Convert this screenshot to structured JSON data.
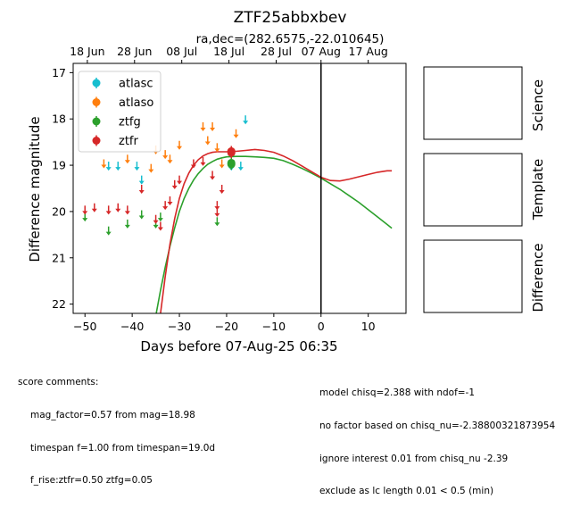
{
  "chart_data": {
    "type": "scatter",
    "title": "ZTF25abbxbev",
    "subtitle": "ra,dec=(282.6575,-22.010645)",
    "xlabel": "Days before 07-Aug-25 06:35",
    "ylabel": "Difference magnitude",
    "xlim": [
      -52.5,
      18.0
    ],
    "ylim": [
      22.2,
      16.8
    ],
    "y_inverted": true,
    "x_ticks": [
      -50,
      -40,
      -30,
      -20,
      -10,
      0,
      10
    ],
    "x_tick_labels": [
      "−50",
      "−40",
      "−30",
      "−20",
      "−10",
      "0",
      "10"
    ],
    "y_ticks": [
      17,
      18,
      19,
      20,
      21,
      22
    ],
    "top_ticks": [
      {
        "x": -49.5,
        "label": "18 Jun"
      },
      {
        "x": -39.5,
        "label": "28 Jun"
      },
      {
        "x": -29.5,
        "label": "08 Jul"
      },
      {
        "x": -19.5,
        "label": "18 Jul"
      },
      {
        "x": -9.5,
        "label": "28 Jul"
      },
      {
        "x": 0.0,
        "label": "07 Aug"
      },
      {
        "x": 10.0,
        "label": "17 Aug"
      }
    ],
    "vline_x": 0,
    "grid": false,
    "legend_position": "upper-left",
    "series": [
      {
        "name": "atlasc",
        "color": "#17becf",
        "limits": [
          [
            -45,
            19.0
          ],
          [
            -43,
            19.0
          ],
          [
            -39,
            19.0
          ],
          [
            -38,
            19.3
          ],
          [
            -19,
            19.0
          ],
          [
            -17,
            19.0
          ],
          [
            -16,
            18.0
          ]
        ],
        "detections": []
      },
      {
        "name": "atlaso",
        "color": "#ff7f0e",
        "limits": [
          [
            -46,
            18.95
          ],
          [
            -41,
            18.85
          ],
          [
            -36,
            19.05
          ],
          [
            -35,
            18.65
          ],
          [
            -33,
            18.75
          ],
          [
            -32,
            18.85
          ],
          [
            -30,
            18.55
          ],
          [
            -25,
            18.15
          ],
          [
            -24,
            18.45
          ],
          [
            -23,
            18.15
          ],
          [
            -22,
            18.6
          ],
          [
            -21,
            18.95
          ],
          [
            -18,
            18.3
          ]
        ],
        "detections": [
          [
            -19,
            18.7
          ]
        ]
      },
      {
        "name": "ztfg",
        "color": "#2ca02c",
        "limits": [
          [
            -50,
            20.1
          ],
          [
            -45,
            20.4
          ],
          [
            -41,
            20.25
          ],
          [
            -38,
            20.05
          ],
          [
            -35,
            20.25
          ],
          [
            -34,
            20.1
          ],
          [
            -22,
            20.2
          ]
        ],
        "detections": [
          [
            -19,
            18.98
          ],
          [
            -19,
            18.95
          ]
        ]
      },
      {
        "name": "ztfr",
        "color": "#d62728",
        "limits": [
          [
            -50,
            19.95
          ],
          [
            -48,
            19.9
          ],
          [
            -45,
            19.95
          ],
          [
            -43,
            19.9
          ],
          [
            -41,
            19.95
          ],
          [
            -38,
            19.5
          ],
          [
            -35,
            20.15
          ],
          [
            -34,
            20.3
          ],
          [
            -33,
            19.85
          ],
          [
            -32,
            19.75
          ],
          [
            -31,
            19.4
          ],
          [
            -30,
            19.3
          ],
          [
            -27,
            18.95
          ],
          [
            -25,
            18.9
          ],
          [
            -23,
            19.2
          ],
          [
            -22,
            19.85
          ],
          [
            -22,
            20.0
          ],
          [
            -21,
            19.5
          ]
        ],
        "detections": [
          [
            -19,
            18.73
          ],
          [
            -19,
            18.7
          ]
        ]
      }
    ],
    "curves": [
      {
        "name": "ztfg",
        "color": "#2ca02c",
        "x": [
          -34.9,
          -34,
          -33,
          -32,
          -31,
          -30,
          -29,
          -28,
          -27,
          -26,
          -25,
          -24,
          -23,
          -22,
          -21,
          -20,
          -18,
          -16,
          -14,
          -12,
          -10,
          -8,
          -6,
          -4,
          -2,
          0,
          2,
          4,
          6,
          8,
          10,
          12,
          14,
          15
        ],
        "y": [
          22.2,
          21.7,
          21.2,
          20.75,
          20.35,
          20.0,
          19.72,
          19.5,
          19.32,
          19.18,
          19.07,
          18.98,
          18.92,
          18.87,
          18.84,
          18.82,
          18.81,
          18.81,
          18.82,
          18.83,
          18.85,
          18.9,
          18.98,
          19.07,
          19.17,
          19.28,
          19.4,
          19.52,
          19.66,
          19.8,
          19.96,
          20.12,
          20.28,
          20.36
        ]
      },
      {
        "name": "ztfr",
        "color": "#d62728",
        "x": [
          -34.0,
          -33,
          -32,
          -31,
          -30,
          -29,
          -28,
          -27,
          -26,
          -25,
          -24,
          -23,
          -22,
          -21,
          -20,
          -18,
          -16,
          -14,
          -12,
          -10,
          -8,
          -6,
          -4,
          -2,
          0,
          2,
          4,
          6,
          8,
          10,
          12,
          14,
          15
        ],
        "y": [
          22.2,
          21.4,
          20.7,
          20.15,
          19.72,
          19.4,
          19.17,
          19.0,
          18.88,
          18.8,
          18.75,
          18.72,
          18.71,
          18.71,
          18.71,
          18.7,
          18.68,
          18.66,
          18.68,
          18.72,
          18.8,
          18.9,
          19.02,
          19.14,
          19.26,
          19.33,
          19.34,
          19.3,
          19.25,
          19.2,
          19.15,
          19.12,
          19.12
        ]
      }
    ],
    "side_panels": [
      "Science",
      "Template",
      "Difference"
    ]
  },
  "comments_left": {
    "heading": "score comments:",
    "lines": [
      "mag_factor=0.57 from mag=18.98",
      "timespan f=1.00 from timespan=19.0d",
      "f_rise:ztfr=0.50 ztfg=0.05"
    ]
  },
  "comments_right": {
    "lines": [
      "model chisq=2.388 with ndof=-1",
      "no factor based on chisq_nu=-2.38800321873954",
      "ignore interest 0.01 from chisq_nu -2.39",
      "exclude as lc length 0.01 < 0.5 (min)"
    ]
  }
}
